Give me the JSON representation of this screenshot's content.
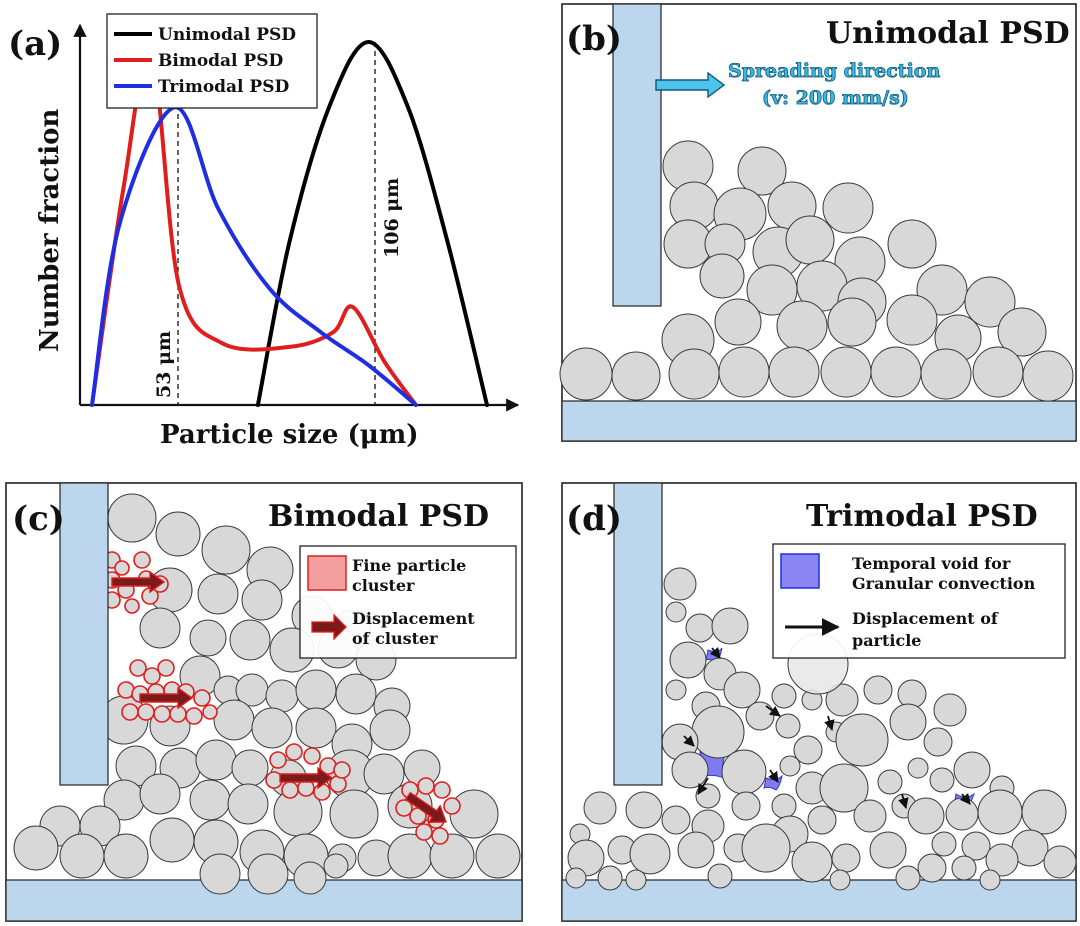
{
  "panels": {
    "a": {
      "letter": "(a)",
      "legend": [
        "Unimodal PSD",
        "Bimodal PSD",
        "Trimodal PSD"
      ],
      "ylabel": "Number fraction",
      "xlabel": "Particle size (μm)",
      "marker_53": "53 μm",
      "marker_106": "106 μm"
    },
    "b": {
      "letter": "(b)",
      "title": "Unimodal PSD",
      "spread_line1": "Spreading direction",
      "spread_line2": "(v: 200 mm/s)"
    },
    "c": {
      "letter": "(c)",
      "title": "Bimodal PSD",
      "legend_fine_1": "Fine particle",
      "legend_fine_2": "cluster",
      "legend_disp_1": "Displacement",
      "legend_disp_2": "of cluster"
    },
    "d": {
      "letter": "(d)",
      "title": "Trimodal PSD",
      "legend_void_1": "Temporal void for",
      "legend_void_2": "Granular convection",
      "legend_disp_1": "Displacement of",
      "legend_disp_2": "particle"
    }
  },
  "chart_data": {
    "type": "line",
    "title": "",
    "xlabel": "Particle size (μm)",
    "ylabel": "Number fraction",
    "xlim": [
      0,
      1
    ],
    "ylim": [
      0,
      1
    ],
    "series": [
      {
        "name": "Unimodal PSD",
        "color": "#000000",
        "x": [
          0.42,
          0.5,
          0.6,
          0.7,
          0.8,
          0.9,
          1.0
        ],
        "y": [
          0.0,
          0.45,
          0.82,
          1.0,
          0.82,
          0.45,
          0.0
        ]
      },
      {
        "name": "Bimodal PSD",
        "color": "#e01e1e",
        "x": [
          0.0,
          0.08,
          0.15,
          0.22,
          0.33,
          0.5,
          0.61,
          0.66,
          0.74,
          0.82
        ],
        "y": [
          0.0,
          0.6,
          0.97,
          0.33,
          0.17,
          0.16,
          0.2,
          0.27,
          0.12,
          0.0
        ]
      },
      {
        "name": "Trimodal PSD",
        "color": "#1f2ee0",
        "x": [
          0.0,
          0.07,
          0.21,
          0.32,
          0.45,
          0.58,
          0.7,
          0.82
        ],
        "y": [
          0.0,
          0.5,
          0.82,
          0.54,
          0.32,
          0.2,
          0.11,
          0.0
        ]
      }
    ],
    "annotations": [
      "53 μm",
      "106 μm"
    ]
  }
}
